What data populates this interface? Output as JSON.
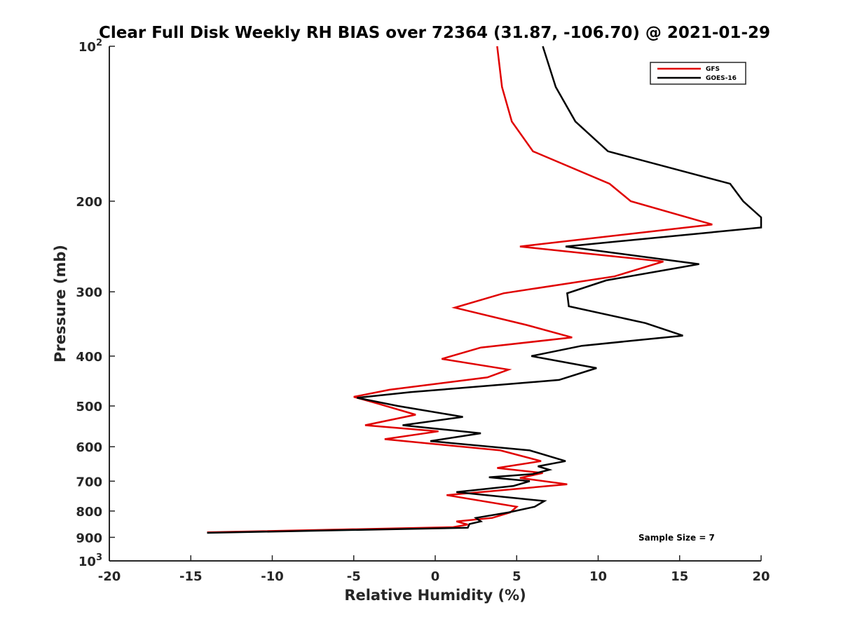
{
  "chart_data": {
    "type": "line",
    "title": "Clear Full Disk Weekly RH BIAS over 72364 (31.87, -106.70) @ 2021-01-29",
    "xlabel": "Relative Humidity (%)",
    "ylabel": "Pressure (mb)",
    "xlim": [
      -20,
      20
    ],
    "ylim": [
      100,
      1000
    ],
    "y_scale": "log",
    "y_reversed": true,
    "x_ticks": [
      "-20",
      "-15",
      "-10",
      "-5",
      "0",
      "5",
      "10",
      "15",
      "20"
    ],
    "y_ticks": [
      {
        "value": 100,
        "base": "10",
        "exp": "2"
      },
      {
        "value": 200,
        "label": "200"
      },
      {
        "value": 300,
        "label": "300"
      },
      {
        "value": 400,
        "label": "400"
      },
      {
        "value": 500,
        "label": "500"
      },
      {
        "value": 600,
        "label": "600"
      },
      {
        "value": 700,
        "label": "700"
      },
      {
        "value": 800,
        "label": "800"
      },
      {
        "value": 900,
        "label": "900"
      },
      {
        "value": 1000,
        "base": "10",
        "exp": "3"
      }
    ],
    "legend_position": "top-right",
    "grid": false,
    "annotation": "Sample Size = 7",
    "series": [
      {
        "name": "GFS",
        "color": "#e00000",
        "points": [
          [
            3.8,
            100
          ],
          [
            4.1,
            120
          ],
          [
            4.7,
            140
          ],
          [
            6.0,
            160
          ],
          [
            10.7,
            185
          ],
          [
            12.0,
            200
          ],
          [
            17.0,
            222
          ],
          [
            5.2,
            245
          ],
          [
            14.0,
            262
          ],
          [
            11.0,
            280
          ],
          [
            4.2,
            302
          ],
          [
            1.2,
            322
          ],
          [
            5.6,
            348
          ],
          [
            8.4,
            368
          ],
          [
            2.8,
            385
          ],
          [
            0.4,
            405
          ],
          [
            4.5,
            425
          ],
          [
            3.2,
            440
          ],
          [
            -2.8,
            465
          ],
          [
            -5.0,
            480
          ],
          [
            -3.5,
            495
          ],
          [
            -1.2,
            520
          ],
          [
            -4.3,
            545
          ],
          [
            0.2,
            560
          ],
          [
            -3.1,
            580
          ],
          [
            4.0,
            610
          ],
          [
            6.5,
            640
          ],
          [
            3.8,
            660
          ],
          [
            6.6,
            675
          ],
          [
            5.2,
            690
          ],
          [
            8.1,
            710
          ],
          [
            0.7,
            745
          ],
          [
            5.0,
            785
          ],
          [
            4.6,
            805
          ],
          [
            3.5,
            825
          ],
          [
            1.3,
            838
          ],
          [
            2.0,
            850
          ],
          [
            1.1,
            860
          ],
          [
            -14.0,
            880
          ]
        ]
      },
      {
        "name": "GOES-16",
        "color": "#000000",
        "points": [
          [
            6.6,
            100
          ],
          [
            7.4,
            120
          ],
          [
            8.6,
            140
          ],
          [
            10.6,
            160
          ],
          [
            18.1,
            185
          ],
          [
            18.9,
            200
          ],
          [
            20.0,
            215
          ],
          [
            20.0,
            225
          ],
          [
            8.0,
            245
          ],
          [
            16.2,
            265
          ],
          [
            10.5,
            285
          ],
          [
            8.1,
            302
          ],
          [
            8.2,
            320
          ],
          [
            12.9,
            345
          ],
          [
            15.2,
            365
          ],
          [
            9.0,
            382
          ],
          [
            5.9,
            400
          ],
          [
            9.9,
            422
          ],
          [
            7.6,
            445
          ],
          [
            -1.5,
            470
          ],
          [
            -4.8,
            482
          ],
          [
            -2.3,
            500
          ],
          [
            1.7,
            525
          ],
          [
            -2.0,
            545
          ],
          [
            2.8,
            565
          ],
          [
            -0.3,
            585
          ],
          [
            5.8,
            610
          ],
          [
            8.0,
            640
          ],
          [
            6.3,
            655
          ],
          [
            7.0,
            665
          ],
          [
            6.0,
            678
          ],
          [
            3.3,
            688
          ],
          [
            5.8,
            700
          ],
          [
            4.8,
            715
          ],
          [
            1.3,
            735
          ],
          [
            6.7,
            765
          ],
          [
            6.1,
            785
          ],
          [
            4.5,
            805
          ],
          [
            2.5,
            825
          ],
          [
            2.8,
            838
          ],
          [
            2.1,
            848
          ],
          [
            2.0,
            862
          ],
          [
            -14.0,
            882
          ]
        ]
      }
    ]
  }
}
